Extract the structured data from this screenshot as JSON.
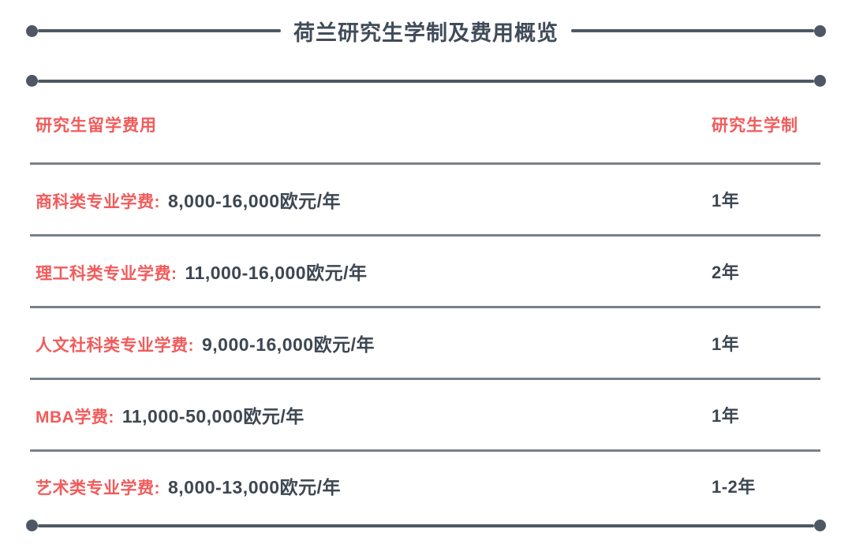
{
  "title": "荷兰研究生学制及费用概览",
  "colors": {
    "accent_red": "#F25B5B",
    "rule_slate": "#4E5864",
    "divider_gray": "#77818A",
    "text_dark": "#3D4752"
  },
  "table": {
    "headers": {
      "fee": "研究生留学费用",
      "duration": "研究生学制"
    },
    "rows": [
      {
        "label": "商科类专业学费:",
        "value": "8,000-16,000欧元/年",
        "duration": "1年"
      },
      {
        "label": "理工科类专业学费:",
        "value": "11,000-16,000欧元/年",
        "duration": "2年"
      },
      {
        "label": "人文社科类专业学费:",
        "value": "9,000-16,000欧元/年",
        "duration": "1年"
      },
      {
        "label": "MBA学费:",
        "value": "11,000-50,000欧元/年",
        "duration": "1年"
      },
      {
        "label": "艺术类专业学费:",
        "value": "8,000-13,000欧元/年",
        "duration": "1-2年"
      }
    ]
  }
}
